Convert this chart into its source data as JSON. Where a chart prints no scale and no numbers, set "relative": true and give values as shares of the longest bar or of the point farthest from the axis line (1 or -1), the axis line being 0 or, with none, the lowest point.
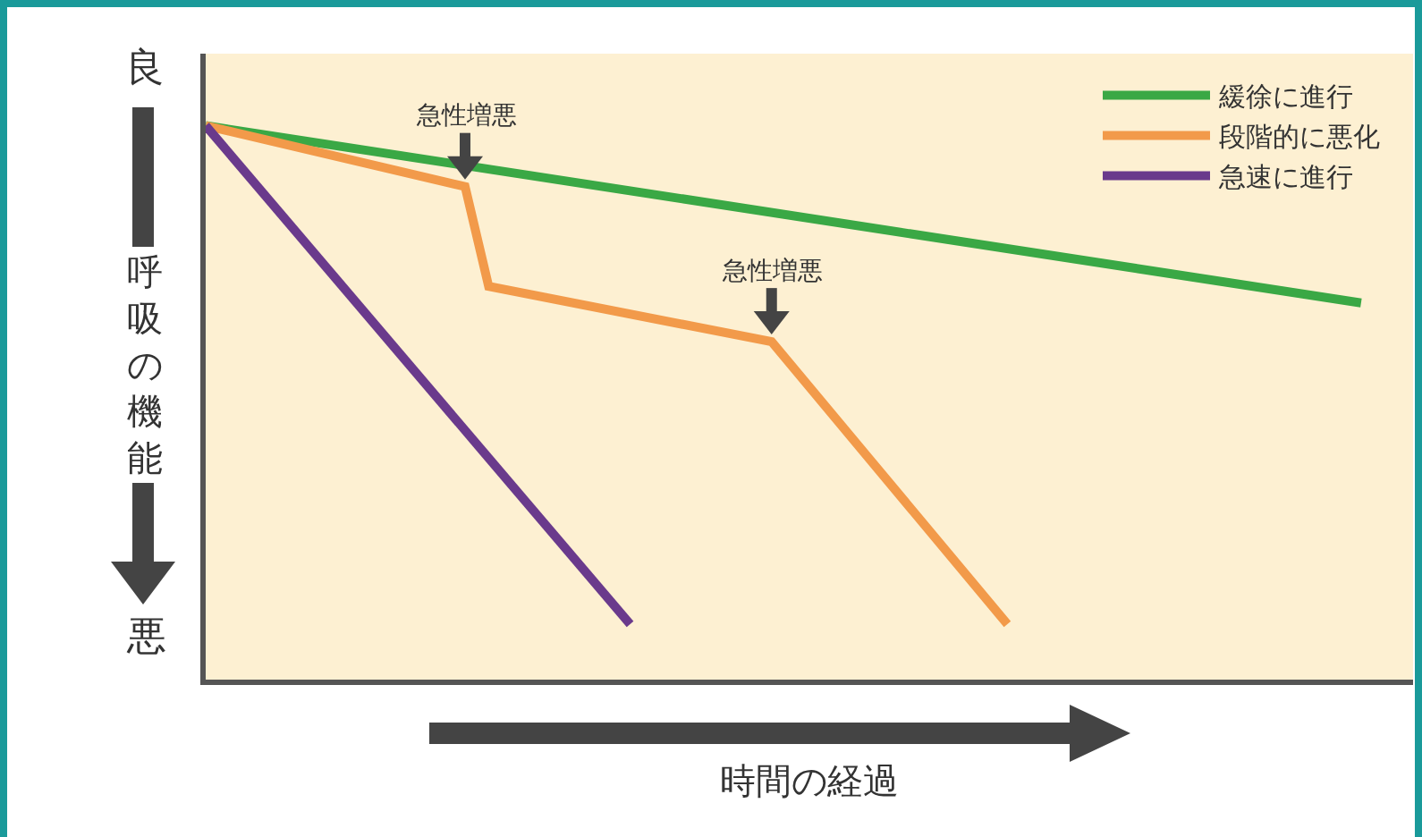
{
  "chart_data": {
    "type": "line",
    "relative": true,
    "ylabel": "呼吸の機能",
    "xlabel": "時間の経過",
    "categories": [
      null,
      null,
      null,
      null,
      null,
      null,
      null,
      null,
      null,
      null,
      null,
      null,
      null,
      null,
      null,
      null,
      null,
      null,
      null,
      null,
      null,
      null,
      null,
      null,
      null,
      null,
      null,
      null,
      null,
      null,
      null,
      null,
      null,
      null,
      null,
      null,
      null,
      null,
      null,
      null,
      null,
      null,
      null,
      null,
      null,
      null,
      null,
      null,
      null,
      null
    ],
    "series": [
      {
        "name": "緩徐に進行",
        "color": "#3aa845",
        "values": [
          1,
          null,
          null,
          null,
          null,
          null,
          null,
          null,
          null,
          null,
          null,
          null,
          null,
          null,
          null,
          null,
          null,
          null,
          null,
          null,
          null,
          null,
          null,
          null,
          null,
          null,
          null,
          null,
          null,
          null,
          null,
          null,
          null,
          null,
          null,
          null,
          null,
          null,
          null,
          null,
          null,
          null,
          null,
          null,
          null,
          null,
          null,
          null,
          null,
          0.68
        ]
      },
      {
        "name": "段階的に悪化",
        "color": "#f29a4a",
        "values": [
          1,
          null,
          null,
          null,
          null,
          null,
          null,
          null,
          null,
          null,
          null,
          0.89,
          0.71,
          null,
          null,
          null,
          null,
          null,
          null,
          null,
          null,
          null,
          null,
          null,
          0.61,
          null,
          null,
          null,
          null,
          null,
          null,
          null,
          null,
          null,
          0.1,
          null,
          null,
          null,
          null,
          null,
          null,
          null,
          null,
          null,
          null,
          null,
          null,
          null,
          null,
          null
        ]
      },
      {
        "name": "急速に進行",
        "color": "#6a3a8c",
        "values": [
          1,
          null,
          null,
          null,
          null,
          null,
          null,
          null,
          null,
          null,
          null,
          null,
          null,
          null,
          null,
          null,
          null,
          null,
          0.1,
          null,
          null,
          null,
          null,
          null,
          null,
          null,
          null,
          null,
          null,
          null,
          null,
          null,
          null,
          null,
          null,
          null,
          null,
          null,
          null,
          null,
          null,
          null,
          null,
          null,
          null,
          null,
          null,
          null,
          null,
          null
        ]
      }
    ],
    "annotations": [
      "良",
      "悪",
      {
        "text": "急性増悪",
        "y": 0.89
      },
      {
        "text": "急性増悪",
        "y": 0.61
      }
    ],
    "legend": "top right",
    "grid": false,
    "marker": "none",
    "line_style": "solid"
  }
}
